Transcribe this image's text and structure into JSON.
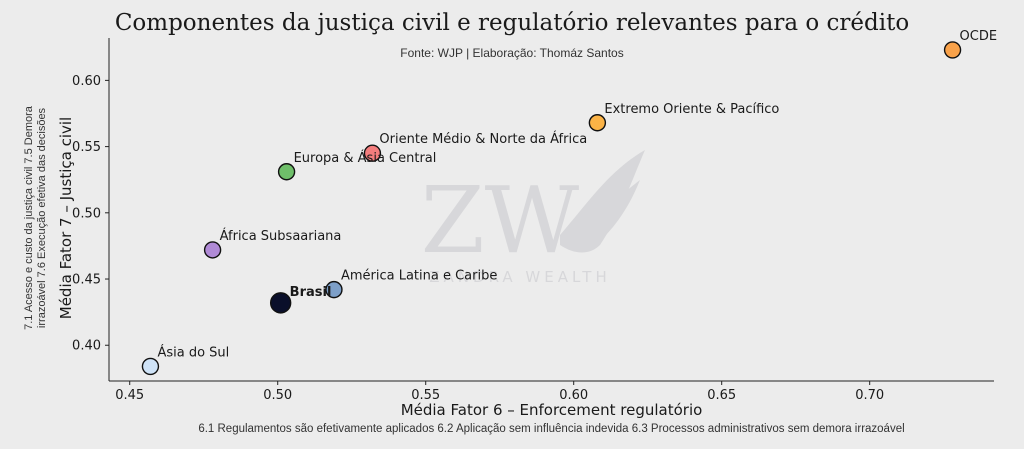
{
  "title": "Componentes da justiça civil e regulatório relevantes para o crédito",
  "subtitle": "Fonte: WJP | Elaboração: Thomáz Santos",
  "watermark": {
    "monogram": "ZW",
    "text": "ZANDRA WEALTH"
  },
  "chart_data": {
    "type": "scatter",
    "xlabel": "Média Fator 6 – Enforcement regulatório",
    "xlabel_detail": "6.1 Regulamentos são efetivamente aplicados 6.2 Aplicação sem influência indevida 6.3 Processos administrativos sem demora irrazoável",
    "ylabel": "Média Fator 7 – Justiça civil",
    "ylabel_detail": "7.1 Acesso e custo da justiça civil 7.5 Demora irrazoável 7.6 Execução efetiva das decisões",
    "xlim": [
      0.443,
      0.742
    ],
    "ylim": [
      0.373,
      0.632
    ],
    "xticks": [
      "0.45",
      "0.50",
      "0.55",
      "0.60",
      "0.65",
      "0.70"
    ],
    "yticks": [
      "0.40",
      "0.45",
      "0.50",
      "0.55",
      "0.60"
    ],
    "grid": false,
    "points": [
      {
        "label": "OCDE",
        "x": 0.728,
        "y": 0.623,
        "color": "#f9a24a",
        "label_pos": "above-right"
      },
      {
        "label": "Extremo Oriente & Pacífico",
        "x": 0.608,
        "y": 0.568,
        "color": "#fbb346",
        "label_pos": "above-right"
      },
      {
        "label": "Oriente Médio & Norte da África",
        "x": 0.532,
        "y": 0.545,
        "color": "#f47d7d",
        "label_pos": "above-right"
      },
      {
        "label": "Europa & Ásia Central",
        "x": 0.503,
        "y": 0.531,
        "color": "#6fbf6a",
        "label_pos": "above-right"
      },
      {
        "label": "África Subsaariana",
        "x": 0.478,
        "y": 0.472,
        "color": "#b08ad6",
        "label_pos": "above-right"
      },
      {
        "label": "América Latina e Caribe",
        "x": 0.519,
        "y": 0.442,
        "color": "#7d9fc8",
        "label_pos": "above-right"
      },
      {
        "label": "Brasil",
        "x": 0.501,
        "y": 0.432,
        "color": "#0a0f2a",
        "label_pos": "above-right",
        "bold": true,
        "large": true
      },
      {
        "label": "Ásia do Sul",
        "x": 0.457,
        "y": 0.384,
        "color": "#cfe3f7",
        "label_pos": "above-right"
      }
    ]
  }
}
